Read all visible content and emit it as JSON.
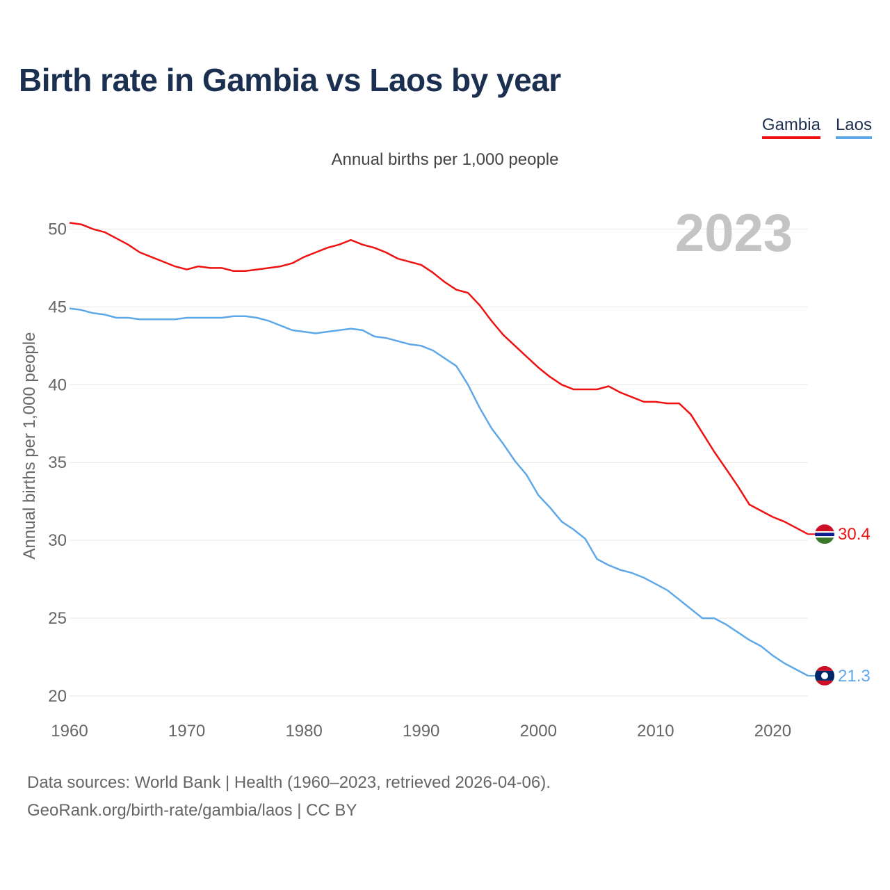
{
  "title": "Birth rate in Gambia vs Laos by year",
  "subtitle": "Annual births per 1,000 people",
  "legend": [
    {
      "label": "Gambia",
      "color": "#ee1111"
    },
    {
      "label": "Laos",
      "color": "#5fa8e8"
    }
  ],
  "year_watermark": "2023",
  "source_line1": "Data sources: World Bank | Health (1960–2023, retrieved 2026-04-06).",
  "source_line2": "GeoRank.org/birth-rate/gambia/laos | CC BY",
  "chart_data": {
    "type": "line",
    "title": "Birth rate in Gambia vs Laos by year",
    "xlabel": "",
    "ylabel": "Annual births per 1,000 people",
    "xlim": [
      1960,
      2023
    ],
    "ylim": [
      20,
      51
    ],
    "yticks": [
      20,
      25,
      30,
      35,
      40,
      45,
      50
    ],
    "xticks": [
      1960,
      1970,
      1980,
      1990,
      2000,
      2010,
      2020
    ],
    "grid": true,
    "legend_position": "top-right",
    "x": [
      1960,
      1961,
      1962,
      1963,
      1964,
      1965,
      1966,
      1967,
      1968,
      1969,
      1970,
      1971,
      1972,
      1973,
      1974,
      1975,
      1976,
      1977,
      1978,
      1979,
      1980,
      1981,
      1982,
      1983,
      1984,
      1985,
      1986,
      1987,
      1988,
      1989,
      1990,
      1991,
      1992,
      1993,
      1994,
      1995,
      1996,
      1997,
      1998,
      1999,
      2000,
      2001,
      2002,
      2003,
      2004,
      2005,
      2006,
      2007,
      2008,
      2009,
      2010,
      2011,
      2012,
      2013,
      2014,
      2015,
      2016,
      2017,
      2018,
      2019,
      2020,
      2021,
      2022,
      2023
    ],
    "series": [
      {
        "name": "Gambia",
        "color": "#ee1111",
        "end_label": "30.4",
        "values": [
          50.4,
          50.3,
          50.0,
          49.8,
          49.4,
          49.0,
          48.5,
          48.2,
          47.9,
          47.6,
          47.4,
          47.6,
          47.5,
          47.5,
          47.3,
          47.3,
          47.4,
          47.5,
          47.6,
          47.8,
          48.2,
          48.5,
          48.8,
          49.0,
          49.3,
          49.0,
          48.8,
          48.5,
          48.1,
          47.9,
          47.7,
          47.2,
          46.6,
          46.1,
          45.9,
          45.1,
          44.1,
          43.2,
          42.5,
          41.8,
          41.1,
          40.5,
          40.0,
          39.7,
          39.7,
          39.7,
          39.9,
          39.5,
          39.2,
          38.9,
          38.9,
          38.8,
          38.8,
          38.1,
          36.9,
          35.7,
          34.6,
          33.5,
          32.3,
          31.9,
          31.5,
          31.2,
          30.8,
          30.4
        ]
      },
      {
        "name": "Laos",
        "color": "#5fa8e8",
        "end_label": "21.3",
        "values": [
          44.9,
          44.8,
          44.6,
          44.5,
          44.3,
          44.3,
          44.2,
          44.2,
          44.2,
          44.2,
          44.3,
          44.3,
          44.3,
          44.3,
          44.4,
          44.4,
          44.3,
          44.1,
          43.8,
          43.5,
          43.4,
          43.3,
          43.4,
          43.5,
          43.6,
          43.5,
          43.1,
          43.0,
          42.8,
          42.6,
          42.5,
          42.2,
          41.7,
          41.2,
          40.0,
          38.5,
          37.2,
          36.2,
          35.1,
          34.2,
          32.9,
          32.1,
          31.2,
          30.7,
          30.1,
          28.8,
          28.4,
          28.1,
          27.9,
          27.6,
          27.2,
          26.8,
          26.2,
          25.6,
          25.0,
          25.0,
          24.6,
          24.1,
          23.6,
          23.2,
          22.6,
          22.1,
          21.7,
          21.3
        ]
      }
    ]
  }
}
